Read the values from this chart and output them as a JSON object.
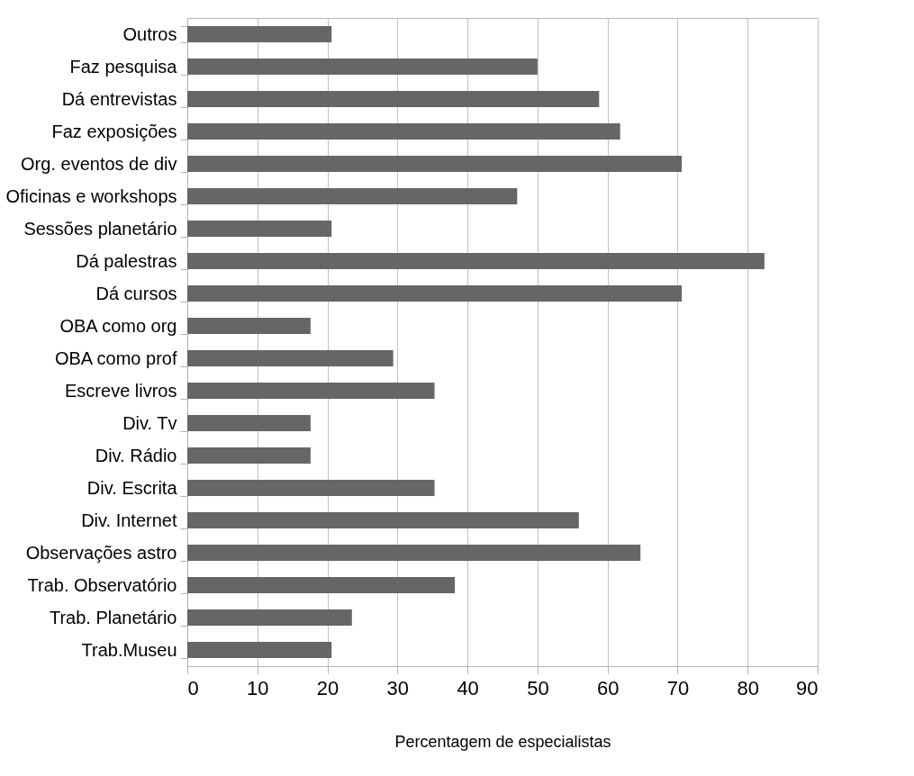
{
  "chart_data": {
    "type": "bar",
    "orientation": "horizontal",
    "xlabel": "Percentagem de especialistas",
    "categories": [
      "Outros",
      "Faz pesquisa",
      "Dá entrevistas",
      "Faz exposições",
      "Org. eventos de div",
      "Oficinas e workshops",
      "Sessões planetário",
      "Dá palestras",
      "Dá cursos",
      "OBA como org",
      "OBA como prof",
      "Escreve livros",
      "Div. Tv",
      "Div. Rádio",
      "Div. Escrita",
      "Div. Internet",
      "Observações astro",
      "Trab. Observatório",
      "Trab. Planetário",
      "Trab.Museu"
    ],
    "values": [
      20.6,
      50.0,
      58.8,
      61.8,
      70.6,
      47.1,
      20.6,
      82.4,
      70.6,
      17.6,
      29.4,
      35.3,
      17.6,
      17.6,
      35.3,
      55.9,
      64.7,
      38.2,
      23.5,
      20.6
    ],
    "color": "#666666",
    "xlim": [
      0,
      90
    ],
    "xticks": [
      0,
      10,
      20,
      30,
      40,
      50,
      60,
      70,
      80,
      90
    ],
    "grid": "x"
  }
}
